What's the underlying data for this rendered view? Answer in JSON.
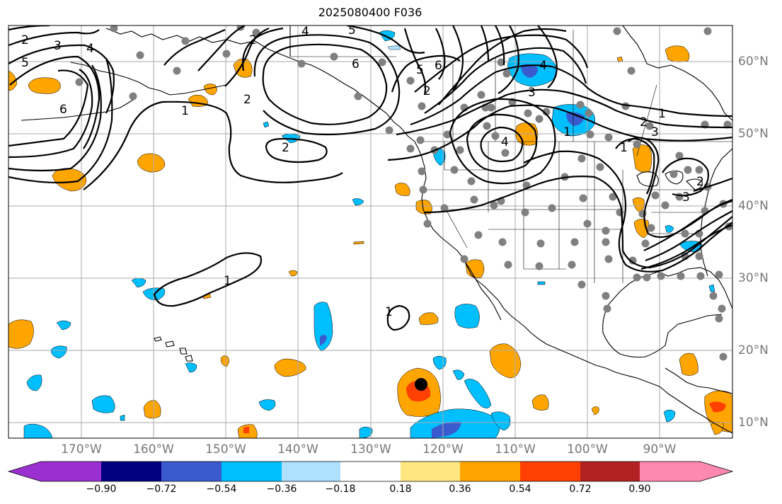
{
  "title": "2025080400 F036",
  "lon_labels": [
    "170°W",
    "160°W",
    "150°W",
    "140°W",
    "130°W",
    "120°W",
    "110°W",
    "100°W",
    "90°W"
  ],
  "lat_labels": [
    "60°N",
    "50°N",
    "40°N",
    "30°N",
    "20°N",
    "10°N"
  ],
  "colorbar": {
    "ticks": [
      "−0.90",
      "−0.72",
      "−0.54",
      "−0.36",
      "−0.18",
      "0.18",
      "0.36",
      "0.54",
      "0.72",
      "0.90"
    ],
    "colors": [
      "#9b30d0",
      "#000080",
      "#3a5bd0",
      "#00bfff",
      "#aee0ff",
      "#ffffff",
      "#ffe680",
      "#ffa500",
      "#ff4000",
      "#b22222",
      "#ff88b0"
    ]
  },
  "colors": {
    "grid": "#aaaaaa",
    "coast": "#000000",
    "contour": "#000000",
    "station_dot": "#808080",
    "marker": "#000000"
  },
  "contour_labels": [
    "2",
    "3",
    "4",
    "5",
    "6",
    "2",
    "1",
    "2",
    "4",
    "5",
    "6",
    "5",
    "6",
    "2",
    "3",
    "4",
    "1",
    "2",
    "3",
    "1",
    "2",
    "1",
    "2",
    "3",
    "1",
    "4",
    "1"
  ]
}
